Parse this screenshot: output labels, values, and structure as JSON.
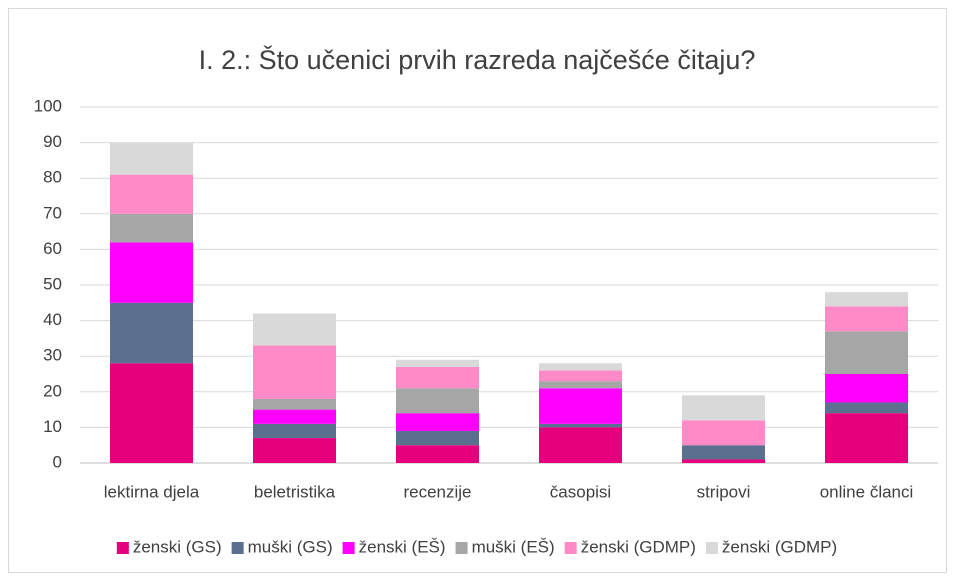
{
  "chart_data": {
    "type": "stacked_bar",
    "title": "I. 2.: Što učenici prvih razreda najčešće čitaju?",
    "categories": [
      "lektirna djela",
      "beletristika",
      "recenzije",
      "časopisi",
      "stripovi",
      "online članci"
    ],
    "series": [
      {
        "name": "ženski (GS)",
        "color": "#e6007e",
        "values": [
          28,
          7,
          5,
          10,
          1,
          14
        ]
      },
      {
        "name": "muški (GS)",
        "color": "#5b6f8f",
        "values": [
          17,
          4,
          4,
          1,
          4,
          3
        ]
      },
      {
        "name": "ženski (EŠ)",
        "color": "#ff00ff",
        "values": [
          17,
          4,
          5,
          10,
          0,
          8
        ]
      },
      {
        "name": "muški (EŠ)",
        "color": "#a6a6a6",
        "values": [
          8,
          3,
          7,
          2,
          0,
          12
        ]
      },
      {
        "name": "ženski (GDMP)",
        "color": "#ff8ac8",
        "values": [
          11,
          15,
          6,
          3,
          7,
          7
        ]
      },
      {
        "name": "ženski (GDMP)",
        "color": "#d9d9d9",
        "values": [
          9,
          9,
          2,
          2,
          7,
          4
        ]
      }
    ],
    "ylim": [
      0,
      100
    ],
    "yticks": [
      0,
      10,
      20,
      30,
      40,
      50,
      60,
      70,
      80,
      90,
      100
    ],
    "grid": true,
    "legend": "bottom"
  }
}
